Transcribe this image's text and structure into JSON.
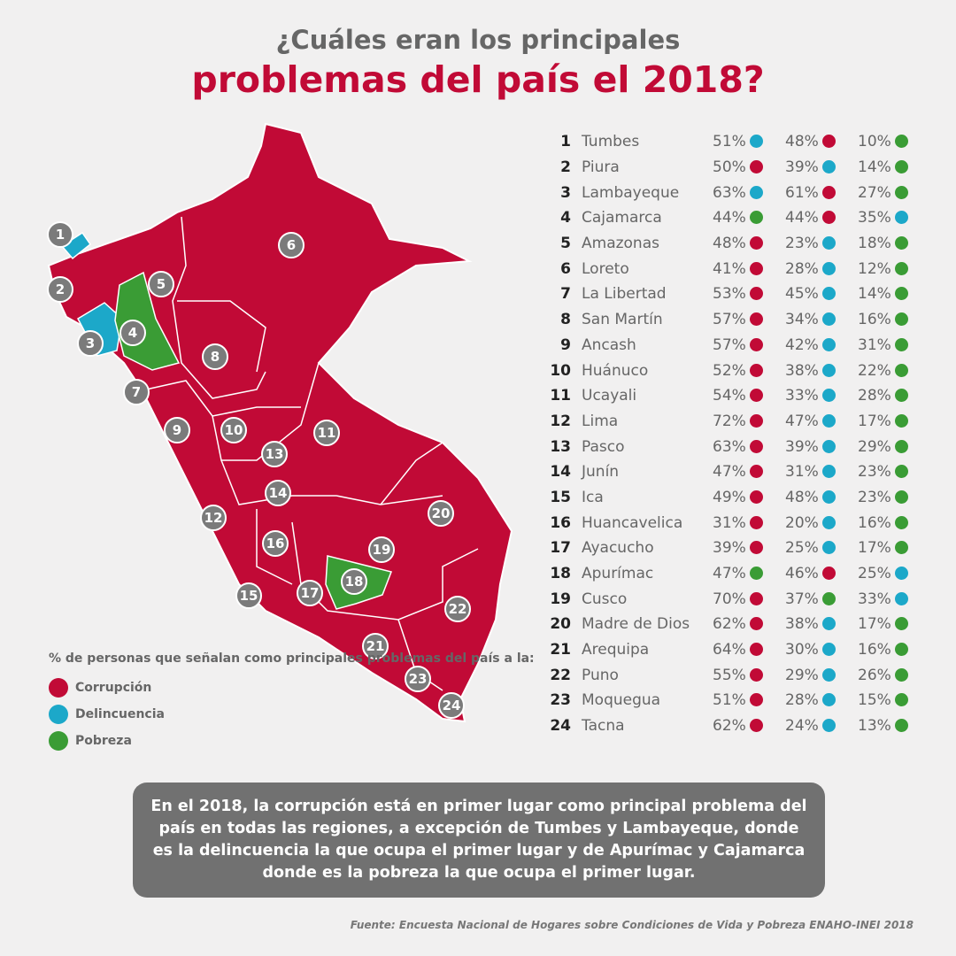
{
  "title": {
    "line1": "¿Cuáles eran los principales",
    "line2": "problemas del  país el 2018?"
  },
  "colors": {
    "corrupcion": "#c10a36",
    "delincuencia": "#1ca8c9",
    "pobreza": "#3a9c35",
    "marker": "#7b7b7b"
  },
  "legend": {
    "title": "% de personas que señalan como principales problemas del país a la:",
    "items": [
      {
        "label": "Corrupción",
        "key": "corrupcion"
      },
      {
        "label": "Delincuencia",
        "key": "delincuencia"
      },
      {
        "label": "Pobreza",
        "key": "pobreza"
      }
    ]
  },
  "regions": [
    {
      "n": "1",
      "name": "Tumbes",
      "vals": [
        [
          "51%",
          "delincuencia"
        ],
        [
          "48%",
          "corrupcion"
        ],
        [
          "10%",
          "pobreza"
        ]
      ]
    },
    {
      "n": "2",
      "name": "Piura",
      "vals": [
        [
          "50%",
          "corrupcion"
        ],
        [
          "39%",
          "delincuencia"
        ],
        [
          "14%",
          "pobreza"
        ]
      ]
    },
    {
      "n": "3",
      "name": "Lambayeque",
      "vals": [
        [
          "63%",
          "delincuencia"
        ],
        [
          "61%",
          "corrupcion"
        ],
        [
          "27%",
          "pobreza"
        ]
      ]
    },
    {
      "n": "4",
      "name": "Cajamarca",
      "vals": [
        [
          "44%",
          "pobreza"
        ],
        [
          "44%",
          "corrupcion"
        ],
        [
          "35%",
          "delincuencia"
        ]
      ]
    },
    {
      "n": "5",
      "name": "Amazonas",
      "vals": [
        [
          "48%",
          "corrupcion"
        ],
        [
          "23%",
          "delincuencia"
        ],
        [
          "18%",
          "pobreza"
        ]
      ]
    },
    {
      "n": "6",
      "name": "Loreto",
      "vals": [
        [
          "41%",
          "corrupcion"
        ],
        [
          "28%",
          "delincuencia"
        ],
        [
          "12%",
          "pobreza"
        ]
      ]
    },
    {
      "n": "7",
      "name": "La Libertad",
      "vals": [
        [
          "53%",
          "corrupcion"
        ],
        [
          "45%",
          "delincuencia"
        ],
        [
          "14%",
          "pobreza"
        ]
      ]
    },
    {
      "n": "8",
      "name": "San Martín",
      "vals": [
        [
          "57%",
          "corrupcion"
        ],
        [
          "34%",
          "delincuencia"
        ],
        [
          "16%",
          "pobreza"
        ]
      ]
    },
    {
      "n": "9",
      "name": "Ancash",
      "vals": [
        [
          "57%",
          "corrupcion"
        ],
        [
          "42%",
          "delincuencia"
        ],
        [
          "31%",
          "pobreza"
        ]
      ]
    },
    {
      "n": "10",
      "name": "Huánuco",
      "vals": [
        [
          "52%",
          "corrupcion"
        ],
        [
          "38%",
          "delincuencia"
        ],
        [
          "22%",
          "pobreza"
        ]
      ]
    },
    {
      "n": "11",
      "name": "Ucayali",
      "vals": [
        [
          "54%",
          "corrupcion"
        ],
        [
          "33%",
          "delincuencia"
        ],
        [
          "28%",
          "pobreza"
        ]
      ]
    },
    {
      "n": "12",
      "name": "Lima",
      "vals": [
        [
          "72%",
          "corrupcion"
        ],
        [
          "47%",
          "delincuencia"
        ],
        [
          "17%",
          "pobreza"
        ]
      ]
    },
    {
      "n": "13",
      "name": "Pasco",
      "vals": [
        [
          "63%",
          "corrupcion"
        ],
        [
          "39%",
          "delincuencia"
        ],
        [
          "29%",
          "pobreza"
        ]
      ]
    },
    {
      "n": "14",
      "name": "Junín",
      "vals": [
        [
          "47%",
          "corrupcion"
        ],
        [
          "31%",
          "delincuencia"
        ],
        [
          "23%",
          "pobreza"
        ]
      ]
    },
    {
      "n": "15",
      "name": "Ica",
      "vals": [
        [
          "49%",
          "corrupcion"
        ],
        [
          "48%",
          "delincuencia"
        ],
        [
          "23%",
          "pobreza"
        ]
      ]
    },
    {
      "n": "16",
      "name": "Huancavelica",
      "vals": [
        [
          "31%",
          "corrupcion"
        ],
        [
          "20%",
          "delincuencia"
        ],
        [
          "16%",
          "pobreza"
        ]
      ]
    },
    {
      "n": "17",
      "name": "Ayacucho",
      "vals": [
        [
          "39%",
          "corrupcion"
        ],
        [
          "25%",
          "delincuencia"
        ],
        [
          "17%",
          "pobreza"
        ]
      ]
    },
    {
      "n": "18",
      "name": "Apurímac",
      "vals": [
        [
          "47%",
          "pobreza"
        ],
        [
          "46%",
          "corrupcion"
        ],
        [
          "25%",
          "delincuencia"
        ]
      ]
    },
    {
      "n": "19",
      "name": "Cusco",
      "vals": [
        [
          "70%",
          "corrupcion"
        ],
        [
          "37%",
          "pobreza"
        ],
        [
          "33%",
          "delincuencia"
        ]
      ]
    },
    {
      "n": "20",
      "name": "Madre de Dios",
      "vals": [
        [
          "62%",
          "corrupcion"
        ],
        [
          "38%",
          "delincuencia"
        ],
        [
          "17%",
          "pobreza"
        ]
      ]
    },
    {
      "n": "21",
      "name": "Arequipa",
      "vals": [
        [
          "64%",
          "corrupcion"
        ],
        [
          "30%",
          "delincuencia"
        ],
        [
          "16%",
          "pobreza"
        ]
      ]
    },
    {
      "n": "22",
      "name": "Puno",
      "vals": [
        [
          "55%",
          "corrupcion"
        ],
        [
          "29%",
          "delincuencia"
        ],
        [
          "26%",
          "pobreza"
        ]
      ]
    },
    {
      "n": "23",
      "name": "Moquegua",
      "vals": [
        [
          "51%",
          "corrupcion"
        ],
        [
          "28%",
          "delincuencia"
        ],
        [
          "15%",
          "pobreza"
        ]
      ]
    },
    {
      "n": "24",
      "name": "Tacna",
      "vals": [
        [
          "62%",
          "corrupcion"
        ],
        [
          "24%",
          "delincuencia"
        ],
        [
          "13%",
          "pobreza"
        ]
      ]
    }
  ],
  "note": "En el 2018, la corrupción está en primer lugar como principal problema del país en todas las regiones, a excepción de Tumbes y Lambayeque, donde es la delincuencia la que ocupa el primer lugar y de Apurímac y Cajamarca donde es la pobreza la que ocupa el primer lugar.",
  "source": "Fuente: Encuesta Nacional de Hogares sobre Condiciones de Vida y Pobreza  ENAHO-INEI 2018"
}
